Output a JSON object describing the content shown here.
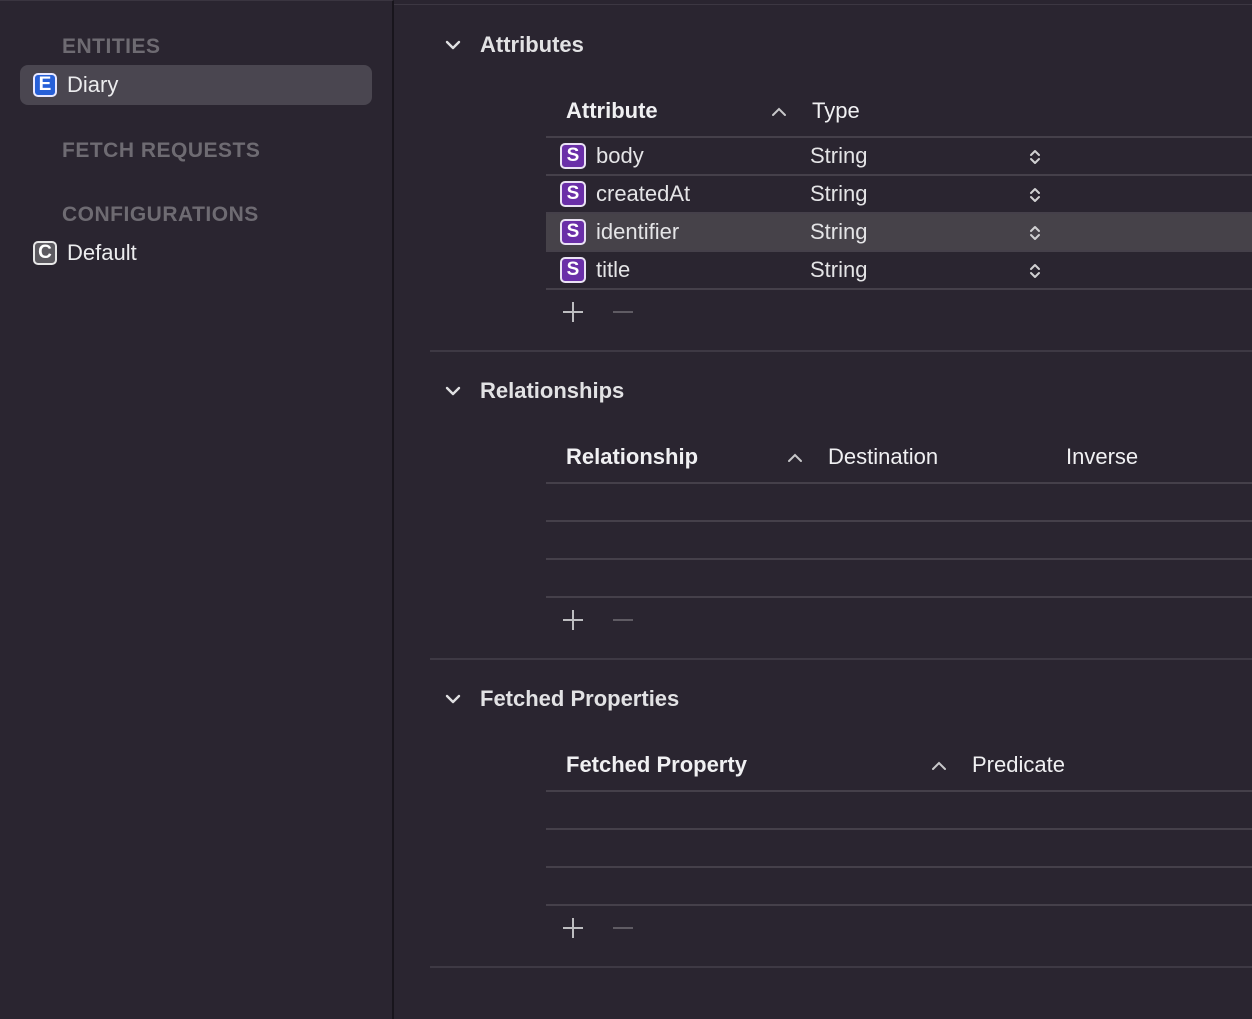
{
  "sidebar": {
    "entities_header": "ENTITIES",
    "entities": [
      {
        "badge": "E",
        "label": "Diary"
      }
    ],
    "fetch_requests_header": "FETCH REQUESTS",
    "configurations_header": "CONFIGURATIONS",
    "configurations": [
      {
        "badge": "C",
        "label": "Default"
      }
    ]
  },
  "attributes": {
    "title": "Attributes",
    "columns": {
      "attribute": "Attribute",
      "type": "Type"
    },
    "rows": [
      {
        "badge": "S",
        "name": "body",
        "type": "String"
      },
      {
        "badge": "S",
        "name": "createdAt",
        "type": "String"
      },
      {
        "badge": "S",
        "name": "identifier",
        "type": "String"
      },
      {
        "badge": "S",
        "name": "title",
        "type": "String"
      }
    ]
  },
  "relationships": {
    "title": "Relationships",
    "columns": {
      "relationship": "Relationship",
      "destination": "Destination",
      "inverse": "Inverse"
    }
  },
  "fetched_properties": {
    "title": "Fetched Properties",
    "columns": {
      "fetched_property": "Fetched Property",
      "predicate": "Predicate"
    }
  },
  "colors": {
    "background": "#2a2530",
    "selection": "#4a4650",
    "entity_badge": "#2760d8",
    "attribute_badge": "#6a2fa8"
  }
}
